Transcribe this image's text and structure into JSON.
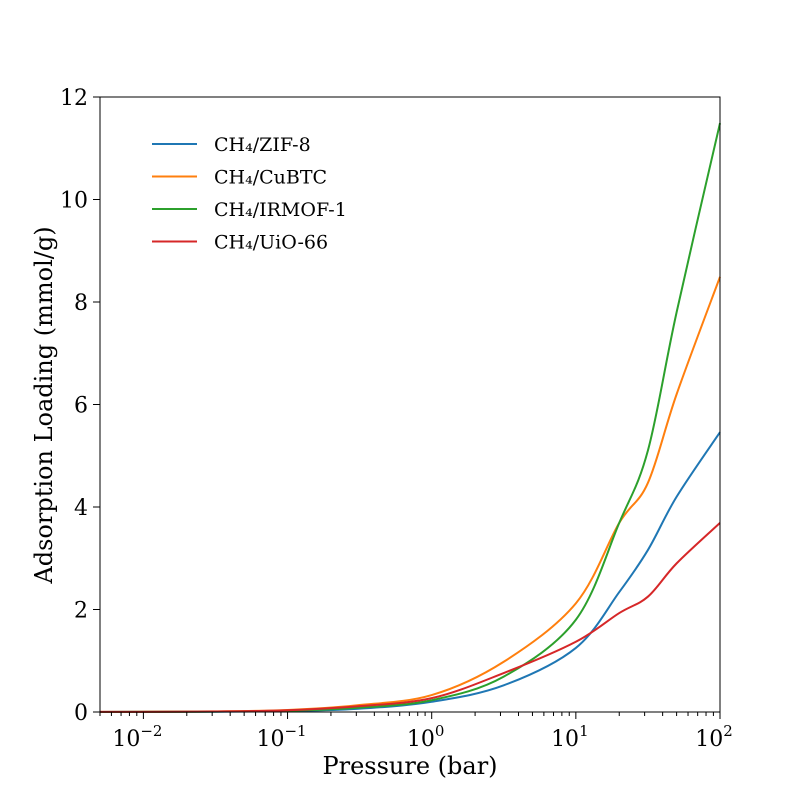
{
  "chart_data": {
    "type": "line",
    "title": "",
    "xlabel": "Pressure (bar)",
    "ylabel": "Adsorption Loading (mmol/g)",
    "xscale": "log",
    "xlim": [
      0.005,
      100
    ],
    "ylim": [
      0,
      12
    ],
    "grid": false,
    "legend": "top-left",
    "x_ticks": [
      {
        "base": "10",
        "exp": "−2",
        "value": 0.01
      },
      {
        "base": "10",
        "exp": "−1",
        "value": 0.1
      },
      {
        "base": "10",
        "exp": "0",
        "value": 1
      },
      {
        "base": "10",
        "exp": "1",
        "value": 10
      },
      {
        "base": "10",
        "exp": "2",
        "value": 100
      }
    ],
    "y_ticks": [
      "0",
      "2",
      "4",
      "6",
      "8",
      "10",
      "12"
    ],
    "x": [
      0.005,
      0.01,
      0.03,
      0.1,
      0.3,
      1,
      3.16,
      10,
      20,
      31.6,
      50,
      100
    ],
    "series": [
      {
        "name": "CH₄/ZIF-8",
        "color": "#1f77b4",
        "values": [
          0.001,
          0.002,
          0.006,
          0.02,
          0.06,
          0.2,
          0.52,
          1.25,
          2.34,
          3.16,
          4.2,
          5.46
        ]
      },
      {
        "name": "CH₄/CuBTC",
        "color": "#ff7f0e",
        "values": [
          0.002,
          0.004,
          0.012,
          0.04,
          0.13,
          0.33,
          0.98,
          2.12,
          3.69,
          4.47,
          6.2,
          8.49
        ]
      },
      {
        "name": "CH₄/IRMOF-1",
        "color": "#2ca02c",
        "values": [
          0.001,
          0.002,
          0.007,
          0.025,
          0.08,
          0.23,
          0.69,
          1.8,
          3.69,
          5.1,
          7.8,
          11.49
        ]
      },
      {
        "name": "CH₄/UiO-66",
        "color": "#d62728",
        "values": [
          0.002,
          0.003,
          0.01,
          0.035,
          0.11,
          0.27,
          0.76,
          1.37,
          1.93,
          2.25,
          2.9,
          3.69
        ]
      }
    ]
  }
}
